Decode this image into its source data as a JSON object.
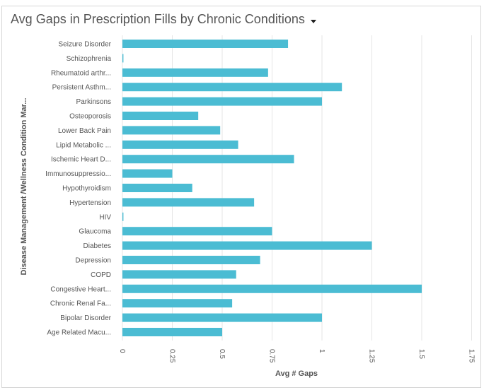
{
  "chart_data": {
    "type": "bar",
    "orientation": "horizontal",
    "title": "Avg Gaps in Prescription Fills by Chronic Conditions",
    "xlabel": "Avg # Gaps",
    "ylabel": "Disease Management /Wellness Condition Mar...",
    "xlim": [
      0,
      1.75
    ],
    "x_ticks": [
      "0",
      "0.25",
      "0.5",
      "0.75",
      "1",
      "1.25",
      "1.5",
      "1.75"
    ],
    "x_tick_values": [
      0,
      0.25,
      0.5,
      0.75,
      1,
      1.25,
      1.5,
      1.75
    ],
    "grid": "vertical",
    "bar_color": "#4bbcd3",
    "categories": [
      "Seizure Disorder",
      "Schizophrenia",
      "Rheumatoid arthr...",
      "Persistent Asthm...",
      "Parkinsons",
      "Osteoporosis",
      "Lower Back Pain",
      "Lipid Metabolic ...",
      "Ischemic Heart D...",
      "Immunosuppressio...",
      "Hypothyroidism",
      "Hypertension",
      "HIV",
      "Glaucoma",
      "Diabetes",
      "Depression",
      "COPD",
      "Congestive Heart...",
      "Chronic Renal Fa...",
      "Bipolar Disorder",
      "Age Related Macu..."
    ],
    "values": [
      0.83,
      0.005,
      0.73,
      1.1,
      1.0,
      0.38,
      0.49,
      0.58,
      0.86,
      0.25,
      0.35,
      0.66,
      0.005,
      0.75,
      1.25,
      0.69,
      0.57,
      1.5,
      0.55,
      1.0,
      0.5
    ]
  }
}
